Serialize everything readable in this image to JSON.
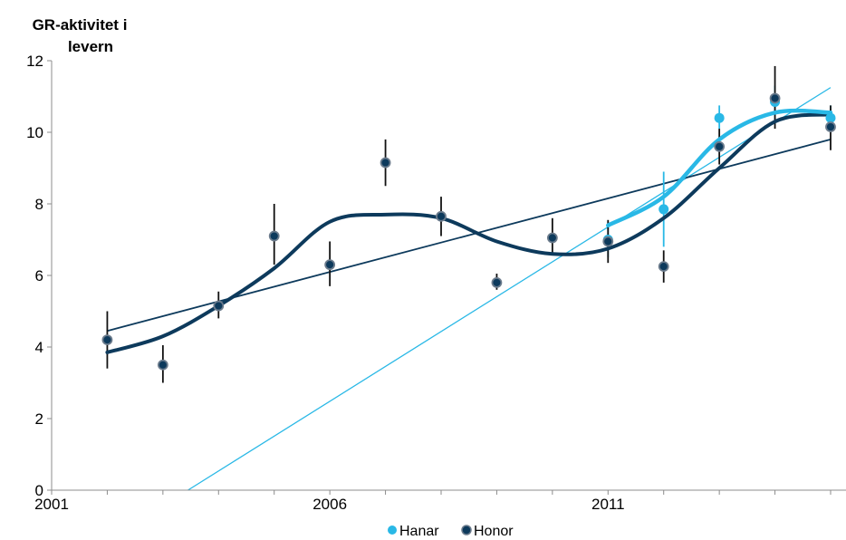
{
  "chart_data": {
    "type": "scatter",
    "ylabel_lines": [
      "GR-aktivitet i",
      "levern"
    ],
    "xlim": [
      2001,
      2015
    ],
    "ylim": [
      0,
      12
    ],
    "x_ticks": [
      2001,
      2006,
      2011
    ],
    "y_ticks": [
      0,
      2,
      4,
      6,
      8,
      10,
      12
    ],
    "grid": false,
    "legend_position": "bottom",
    "legend": [
      "Hanar",
      "Honor"
    ],
    "series": [
      {
        "name": "Hanar",
        "color": "#29b8e6",
        "x": [
          2011,
          2012,
          2013,
          2014,
          2015
        ],
        "y": [
          7.0,
          7.85,
          10.4,
          10.85,
          10.4
        ],
        "err_low": [
          6.5,
          6.8,
          10.1,
          10.3,
          10.05
        ],
        "err_high": [
          7.5,
          8.9,
          10.75,
          11.3,
          10.75
        ],
        "smooth": [
          [
            2011,
            7.4
          ],
          [
            2012,
            8.2
          ],
          [
            2013,
            9.8
          ],
          [
            2014,
            10.55
          ],
          [
            2015,
            10.55
          ]
        ],
        "trend": [
          [
            2003.45,
            0
          ],
          [
            2015,
            11.25
          ]
        ]
      },
      {
        "name": "Honor",
        "color": "#0d3a5c",
        "x": [
          2002,
          2003,
          2004,
          2005,
          2006,
          2007,
          2008,
          2009,
          2010,
          2011,
          2012,
          2013,
          2014,
          2015
        ],
        "y": [
          4.2,
          3.5,
          5.15,
          7.1,
          6.3,
          9.15,
          7.65,
          5.8,
          7.05,
          6.95,
          6.25,
          9.6,
          10.95,
          10.15
        ],
        "err_low": [
          3.4,
          3.0,
          4.8,
          6.3,
          5.7,
          8.5,
          7.1,
          5.6,
          6.6,
          6.35,
          5.8,
          9.1,
          10.1,
          9.5
        ],
        "err_high": [
          5.0,
          4.05,
          5.55,
          8.0,
          6.95,
          9.8,
          8.2,
          6.05,
          7.6,
          7.55,
          6.7,
          10.1,
          11.85,
          10.75
        ],
        "smooth": [
          [
            2002,
            3.85
          ],
          [
            2003,
            4.3
          ],
          [
            2004,
            5.15
          ],
          [
            2005,
            6.2
          ],
          [
            2006,
            7.5
          ],
          [
            2007,
            7.7
          ],
          [
            2008,
            7.6
          ],
          [
            2009,
            6.95
          ],
          [
            2010,
            6.6
          ],
          [
            2011,
            6.75
          ],
          [
            2012,
            7.6
          ],
          [
            2013,
            9.0
          ],
          [
            2014,
            10.3
          ],
          [
            2015,
            10.5
          ]
        ],
        "trend": [
          [
            2002,
            4.45
          ],
          [
            2015,
            9.8
          ]
        ]
      }
    ]
  }
}
